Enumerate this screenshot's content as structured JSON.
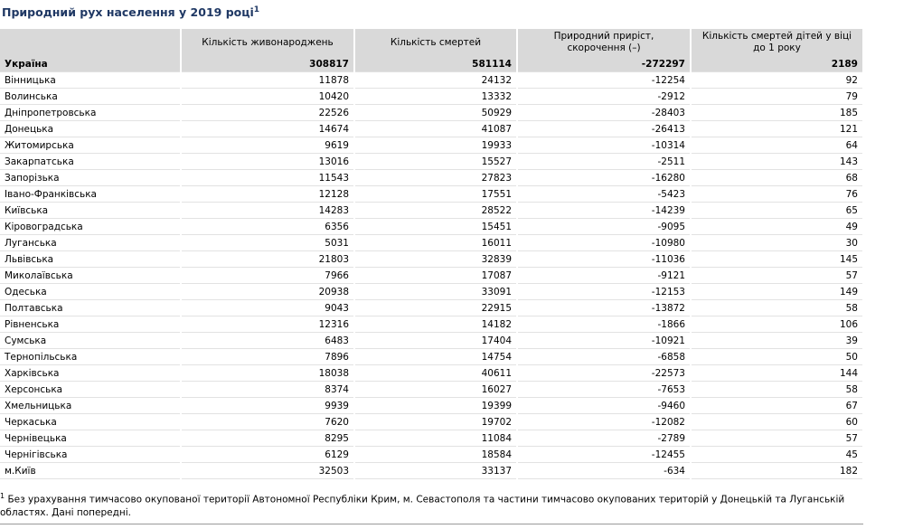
{
  "title": "Природний рух населення у 2019 році",
  "title_note": "1",
  "table": {
    "header": [
      "Кількість живонароджень",
      "Кількість смертей",
      "Природний приріст, скорочення (–)",
      "Кількість смертей дітей у віці до 1 року"
    ],
    "rows": [
      [
        "Україна",
        308817,
        581114,
        -272297,
        2189
      ],
      [
        "Вінницька",
        11878,
        24132,
        -12254,
        92
      ],
      [
        "Волинська",
        10420,
        13332,
        -2912,
        79
      ],
      [
        "Дніпропетровська",
        22526,
        50929,
        -28403,
        185
      ],
      [
        "Донецька",
        14674,
        41087,
        -26413,
        121
      ],
      [
        "Житомирська",
        9619,
        19933,
        -10314,
        64
      ],
      [
        "Закарпатська",
        13016,
        15527,
        -2511,
        143
      ],
      [
        "Запорізька",
        11543,
        27823,
        -16280,
        68
      ],
      [
        "Івано-Франківська",
        12128,
        17551,
        -5423,
        76
      ],
      [
        "Київська",
        14283,
        28522,
        -14239,
        65
      ],
      [
        "Кіровоградська",
        6356,
        15451,
        -9095,
        49
      ],
      [
        "Луганська",
        5031,
        16011,
        -10980,
        30
      ],
      [
        "Львівська",
        21803,
        32839,
        -11036,
        145
      ],
      [
        "Миколаївська",
        7966,
        17087,
        -9121,
        57
      ],
      [
        "Одеська",
        20938,
        33091,
        -12153,
        149
      ],
      [
        "Полтавська",
        9043,
        22915,
        -13872,
        58
      ],
      [
        "Рівненська",
        12316,
        14182,
        -1866,
        106
      ],
      [
        "Сумська",
        6483,
        17404,
        -10921,
        39
      ],
      [
        "Тернопільська",
        7896,
        14754,
        -6858,
        50
      ],
      [
        "Харківська",
        18038,
        40611,
        -22573,
        144
      ],
      [
        "Херсонська",
        8374,
        16027,
        -7653,
        58
      ],
      [
        "Хмельницька",
        9939,
        19399,
        -9460,
        67
      ],
      [
        "Черкаська",
        7620,
        19702,
        -12082,
        60
      ],
      [
        "Чернівецька",
        8295,
        11084,
        -2789,
        57
      ],
      [
        "Чернігівська",
        6129,
        18584,
        -12455,
        45
      ],
      [
        "м.Київ",
        32503,
        33137,
        -634,
        182
      ]
    ]
  },
  "footnote": {
    "marker": "1",
    "text": "Без урахування тимчасово окупованої території Автономної Республіки Крим, м. Севастополя та частини тимчасово окупованих територій у Донецькій та Луганській областях. Дані попередні."
  }
}
